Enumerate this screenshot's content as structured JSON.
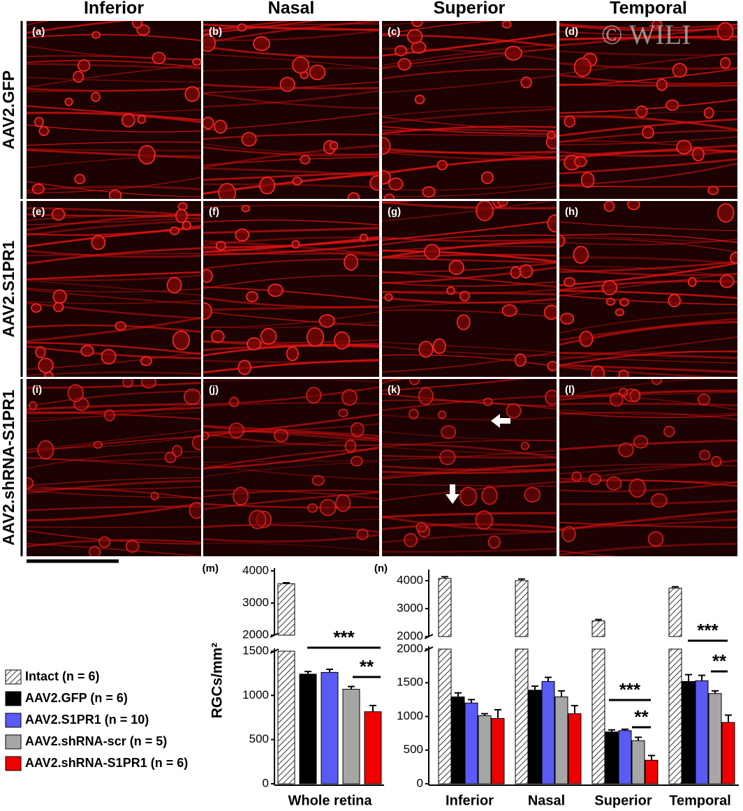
{
  "columns": [
    "Inferior",
    "Nasal",
    "Superior",
    "Temporal"
  ],
  "rows": [
    "AAV2.GFP",
    "AAV2.S1PR1",
    "AAV2.shRNA-S1PR1"
  ],
  "panel_labels": [
    "(a)",
    "(b)",
    "(c)",
    "(d)",
    "(e)",
    "(f)",
    "(g)",
    "(h)",
    "(i)",
    "(j)",
    "(k)",
    "(l)"
  ],
  "watermark": "© WILI",
  "chart_data": [
    {
      "type": "bar",
      "label": "(m)",
      "ylabel": "RGCs/mm²",
      "categories": [
        "Whole retina"
      ],
      "y_segments": [
        {
          "ylim": [
            0,
            1500
          ],
          "yticks": [
            0,
            500,
            1000,
            1500
          ]
        },
        {
          "ylim": [
            2000,
            4000
          ],
          "yticks": [
            2000,
            3000,
            4000
          ]
        }
      ],
      "series": [
        {
          "name": "Intact (n = 6)",
          "color": "#ffffff",
          "pattern": "hatch",
          "values": [
            3600
          ],
          "errors": [
            30
          ]
        },
        {
          "name": "AAV2.GFP (n = 6)",
          "color": "#000000",
          "values": [
            1240
          ],
          "errors": [
            30
          ]
        },
        {
          "name": "AAV2.S1PR1 (n = 10)",
          "color": "#5a5af5",
          "values": [
            1260
          ],
          "errors": [
            35
          ]
        },
        {
          "name": "AAV2.shRNA-scr (n = 5)",
          "color": "#a6a6a6",
          "values": [
            1070
          ],
          "errors": [
            30
          ]
        },
        {
          "name": "AAV2.shRNA-S1PR1 (n = 6)",
          "color": "#f00000",
          "values": [
            815
          ],
          "errors": [
            70
          ]
        }
      ],
      "annotations": [
        "***",
        "**"
      ]
    },
    {
      "type": "bar",
      "label": "(n)",
      "categories": [
        "Inferior",
        "Nasal",
        "Superior",
        "Temporal"
      ],
      "y_segments": [
        {
          "ylim": [
            0,
            2000
          ],
          "yticks": [
            0,
            500,
            1000,
            1500,
            2000
          ]
        },
        {
          "ylim": [
            2000,
            4300
          ],
          "yticks": [
            2000,
            3000,
            4000
          ]
        }
      ],
      "series": [
        {
          "color": "#ffffff",
          "pattern": "hatch",
          "values": [
            4080,
            4000,
            2560,
            3730
          ],
          "errors": [
            60,
            60,
            50,
            50
          ]
        },
        {
          "color": "#000000",
          "values": [
            1290,
            1390,
            770,
            1520
          ],
          "errors": [
            60,
            60,
            30,
            100
          ]
        },
        {
          "color": "#5a5af5",
          "values": [
            1200,
            1520,
            790,
            1530
          ],
          "errors": [
            50,
            60,
            20,
            80
          ]
        },
        {
          "color": "#a6a6a6",
          "values": [
            1010,
            1290,
            640,
            1340
          ],
          "errors": [
            30,
            90,
            50,
            40
          ]
        },
        {
          "color": "#f00000",
          "values": [
            970,
            1040,
            350,
            910
          ],
          "errors": [
            130,
            120,
            70,
            110
          ]
        }
      ],
      "annotations": [
        "***",
        "**",
        "***",
        "**"
      ]
    }
  ]
}
